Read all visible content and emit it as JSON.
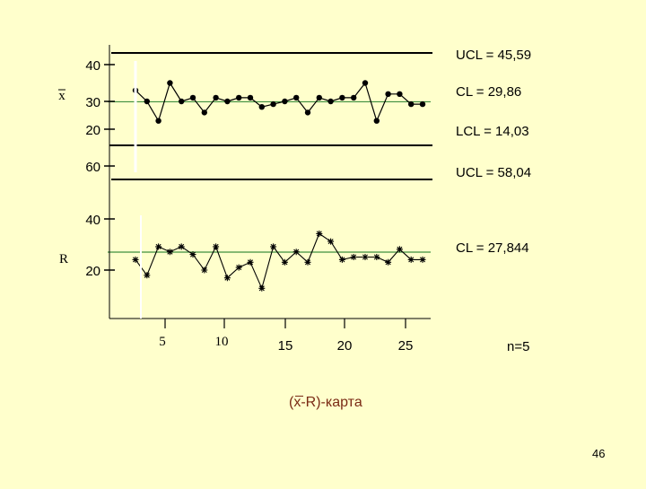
{
  "chart_data": [
    {
      "type": "line",
      "title": "",
      "ylabel": "x",
      "ylim": [
        14.03,
        45.59
      ],
      "y_ticks": [
        "40",
        "30",
        "20"
      ],
      "x": [
        1,
        2,
        3,
        4,
        5,
        6,
        7,
        8,
        9,
        10,
        11,
        12,
        13,
        14,
        15,
        16,
        17,
        18,
        19,
        20,
        21,
        22,
        23,
        24,
        25,
        26
      ],
      "values": [
        33,
        30,
        23,
        35,
        30,
        31,
        26,
        31,
        30,
        31,
        31,
        28,
        29,
        30,
        31,
        26,
        31,
        30,
        31,
        31,
        35,
        23,
        32,
        32,
        29,
        29
      ],
      "control_limits": {
        "ucl": "UCL = 45,59",
        "cl": "CL = 29,86",
        "lcl": "LCL = 14,03"
      },
      "cl_value": 29.86,
      "marker": "dot"
    },
    {
      "type": "line",
      "title": "",
      "ylabel": "R",
      "ylim": [
        0,
        58.04
      ],
      "y_ticks": [
        "60",
        "40",
        "20"
      ],
      "x_ticks": [
        "5",
        "10",
        "15",
        "20",
        "25"
      ],
      "x": [
        1,
        2,
        3,
        4,
        5,
        6,
        7,
        8,
        9,
        10,
        11,
        12,
        13,
        14,
        15,
        16,
        17,
        18,
        19,
        20,
        21,
        22,
        23,
        24,
        25,
        26
      ],
      "values": [
        24,
        18,
        29,
        27,
        29,
        26,
        20,
        29,
        17,
        21,
        23,
        13,
        29,
        23,
        27,
        23,
        34,
        31,
        24,
        25,
        25,
        25,
        23,
        28,
        24,
        24
      ],
      "control_limits": {
        "ucl": "UCL = 58,04",
        "cl": "CL = 27,844"
      },
      "cl_value": 27.844,
      "marker": "asterisk"
    }
  ],
  "sample_size": "n=5",
  "caption": "(x-R)-карта",
  "page_number": "46",
  "colors": {
    "background": "#ffffcc",
    "center_line": "#3f8f3f",
    "caption": "#7a2a14"
  }
}
